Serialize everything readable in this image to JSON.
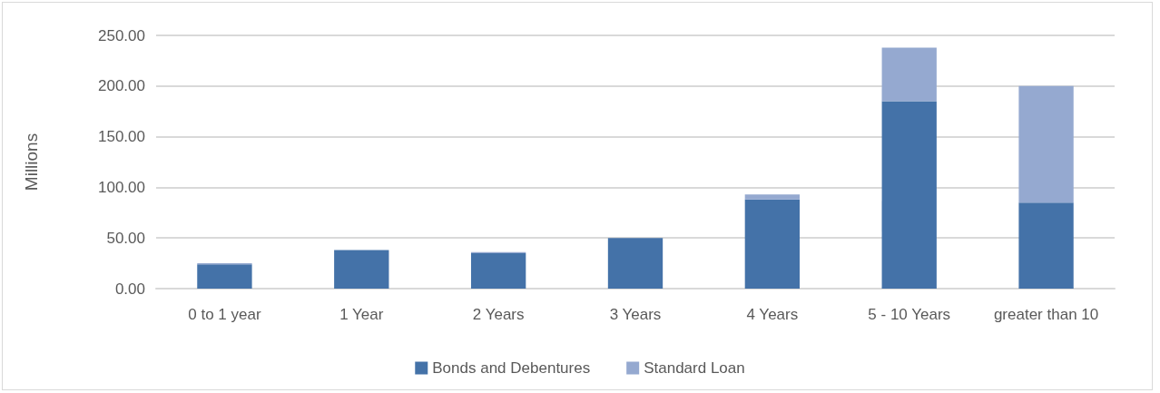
{
  "chart_data": {
    "type": "bar",
    "stacked": true,
    "ylabel": "Millions",
    "categories": [
      "0 to 1 year",
      "1 Year",
      "2 Years",
      "3 Years",
      "4 Years",
      "5 - 10 Years",
      "greater than 10"
    ],
    "series": [
      {
        "name": "Bonds and Debentures",
        "color": "#4472a8",
        "values": [
          24,
          38,
          35,
          50,
          88,
          185,
          85
        ]
      },
      {
        "name": "Standard Loan",
        "color": "#95a9d0",
        "values": [
          1,
          0,
          1,
          0,
          5,
          53,
          115
        ]
      }
    ],
    "ylim": [
      0,
      250
    ],
    "yticks": [
      {
        "value": 0,
        "label": "0.00"
      },
      {
        "value": 50,
        "label": "50.00"
      },
      {
        "value": 100,
        "label": "100.00"
      },
      {
        "value": 150,
        "label": "150.00"
      },
      {
        "value": 200,
        "label": "200.00"
      },
      {
        "value": 250,
        "label": "250.00"
      }
    ],
    "grid": "y",
    "legend": "bottom"
  }
}
